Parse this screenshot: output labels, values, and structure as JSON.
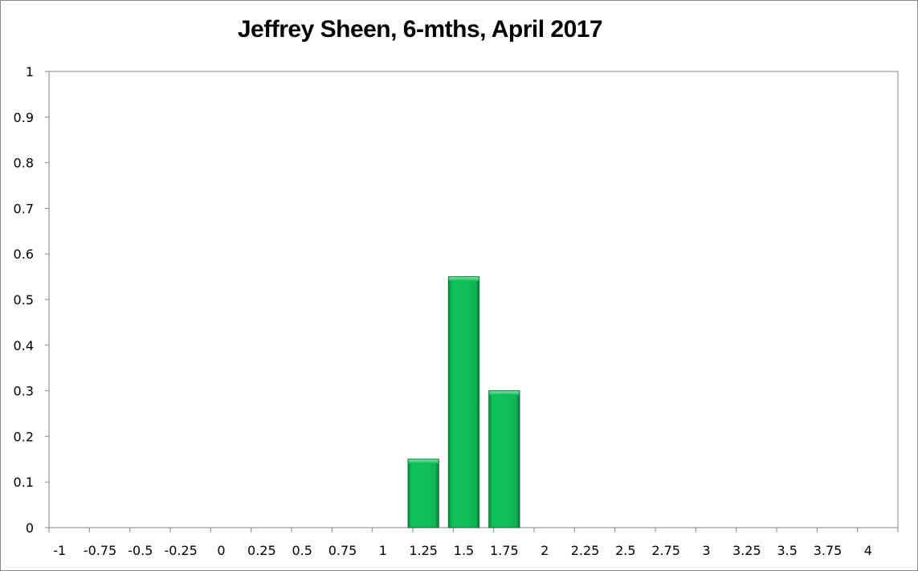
{
  "chart_data": {
    "type": "bar",
    "title": "Jeffrey Sheen, 6-mths, April 2017",
    "xlabel": "",
    "ylabel": "",
    "categories": [
      "-1",
      "-0.75",
      "-0.5",
      "-0.25",
      "0",
      "0.25",
      "0.5",
      "0.75",
      "1",
      "1.25",
      "1.5",
      "1.75",
      "2",
      "2.25",
      "2.5",
      "2.75",
      "3",
      "3.25",
      "3.5",
      "3.75",
      "4"
    ],
    "values": [
      0,
      0,
      0,
      0,
      0,
      0,
      0,
      0,
      0,
      0.15,
      0.55,
      0.3,
      0,
      0,
      0,
      0,
      0,
      0,
      0,
      0,
      0
    ],
    "ylim": [
      0,
      1
    ],
    "yticks": [
      "0",
      "0.1",
      "0.2",
      "0.3",
      "0.4",
      "0.5",
      "0.6",
      "0.7",
      "0.8",
      "0.9",
      "1"
    ],
    "grid": false,
    "legend": "none",
    "bar_color": "#0fb855",
    "bar_edge_color": "#0a6e33"
  }
}
